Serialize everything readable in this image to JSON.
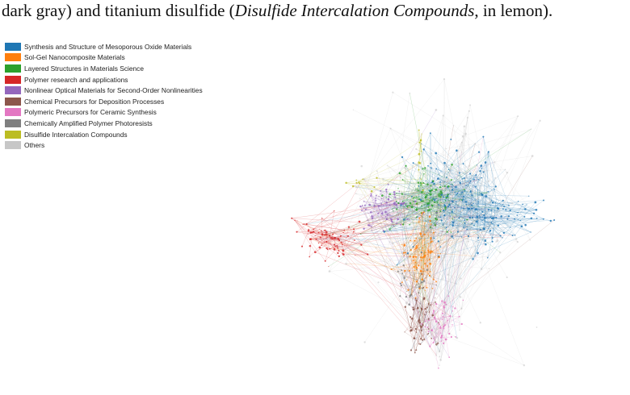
{
  "caption": {
    "prefix": "dark gray) and titanium disulfide (",
    "italic": "Disulfide Intercalation Compounds",
    "suffix": ", in lemon)."
  },
  "legend": {
    "items": [
      {
        "label": "Synthesis and Structure of Mesoporous Oxide Materials",
        "color": "#1f77b4"
      },
      {
        "label": "Sol-Gel Nanocomposite Materials",
        "color": "#ff7f0e"
      },
      {
        "label": "Layered Structures in Materials Science",
        "color": "#2ca02c"
      },
      {
        "label": "Polymer research and applications",
        "color": "#d62728"
      },
      {
        "label": "Nonlinear Optical Materials for Second-Order Nonlinearities",
        "color": "#9467bd"
      },
      {
        "label": "Chemical Precursors for Deposition Processes",
        "color": "#8c564b"
      },
      {
        "label": "Polymeric Precursors for Ceramic Synthesis",
        "color": "#e377c2"
      },
      {
        "label": "Chemically Amplified Polymer Photoresists",
        "color": "#7f7f7f"
      },
      {
        "label": "Disulfide Intercalation Compounds",
        "color": "#bcbd22"
      },
      {
        "label": "Others",
        "color": "#c7c7c7"
      }
    ]
  }
}
